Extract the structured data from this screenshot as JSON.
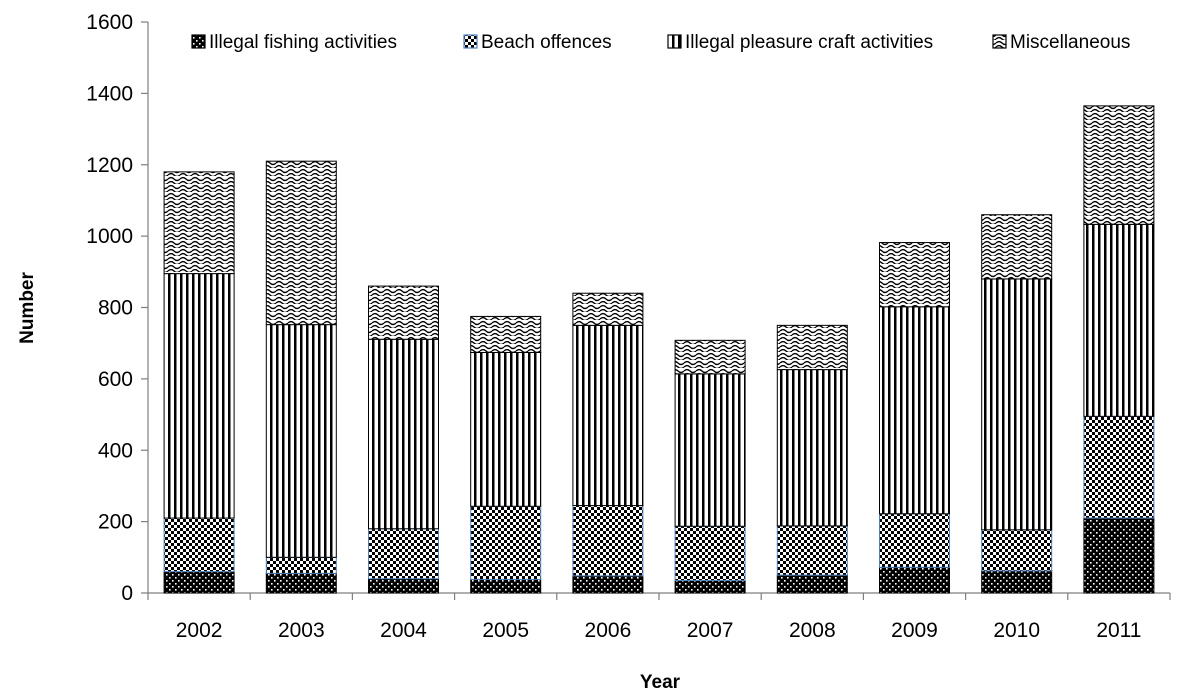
{
  "chart_data": {
    "type": "bar",
    "stacked": true,
    "xlabel": "Year",
    "ylabel": "Number",
    "ylim": [
      0,
      1600
    ],
    "yticks": [
      0,
      200,
      400,
      600,
      800,
      1000,
      1200,
      1400,
      1600
    ],
    "grid": false,
    "legend_position": "top",
    "categories": [
      "2002",
      "2003",
      "2004",
      "2005",
      "2006",
      "2007",
      "2008",
      "2009",
      "2010",
      "2011"
    ],
    "series": [
      {
        "name": "Illegal fishing activities",
        "pattern": "dots",
        "values": [
          60,
          55,
          40,
          38,
          48,
          35,
          50,
          72,
          62,
          210
        ]
      },
      {
        "name": "Beach offences",
        "pattern": "checker",
        "values": [
          150,
          45,
          140,
          205,
          197,
          152,
          138,
          150,
          115,
          285
        ]
      },
      {
        "name": "Illegal pleasure craft activities",
        "pattern": "vertical-stripes",
        "values": [
          685,
          652,
          531,
          431,
          505,
          427,
          438,
          580,
          703,
          538
        ]
      },
      {
        "name": "Miscellaneous",
        "pattern": "waves",
        "values": [
          285,
          458,
          149,
          101,
          90,
          94,
          124,
          180,
          180,
          332
        ]
      }
    ],
    "colors": {
      "bar_outline": "#000000",
      "beach_edge": "#4f81bd"
    }
  }
}
